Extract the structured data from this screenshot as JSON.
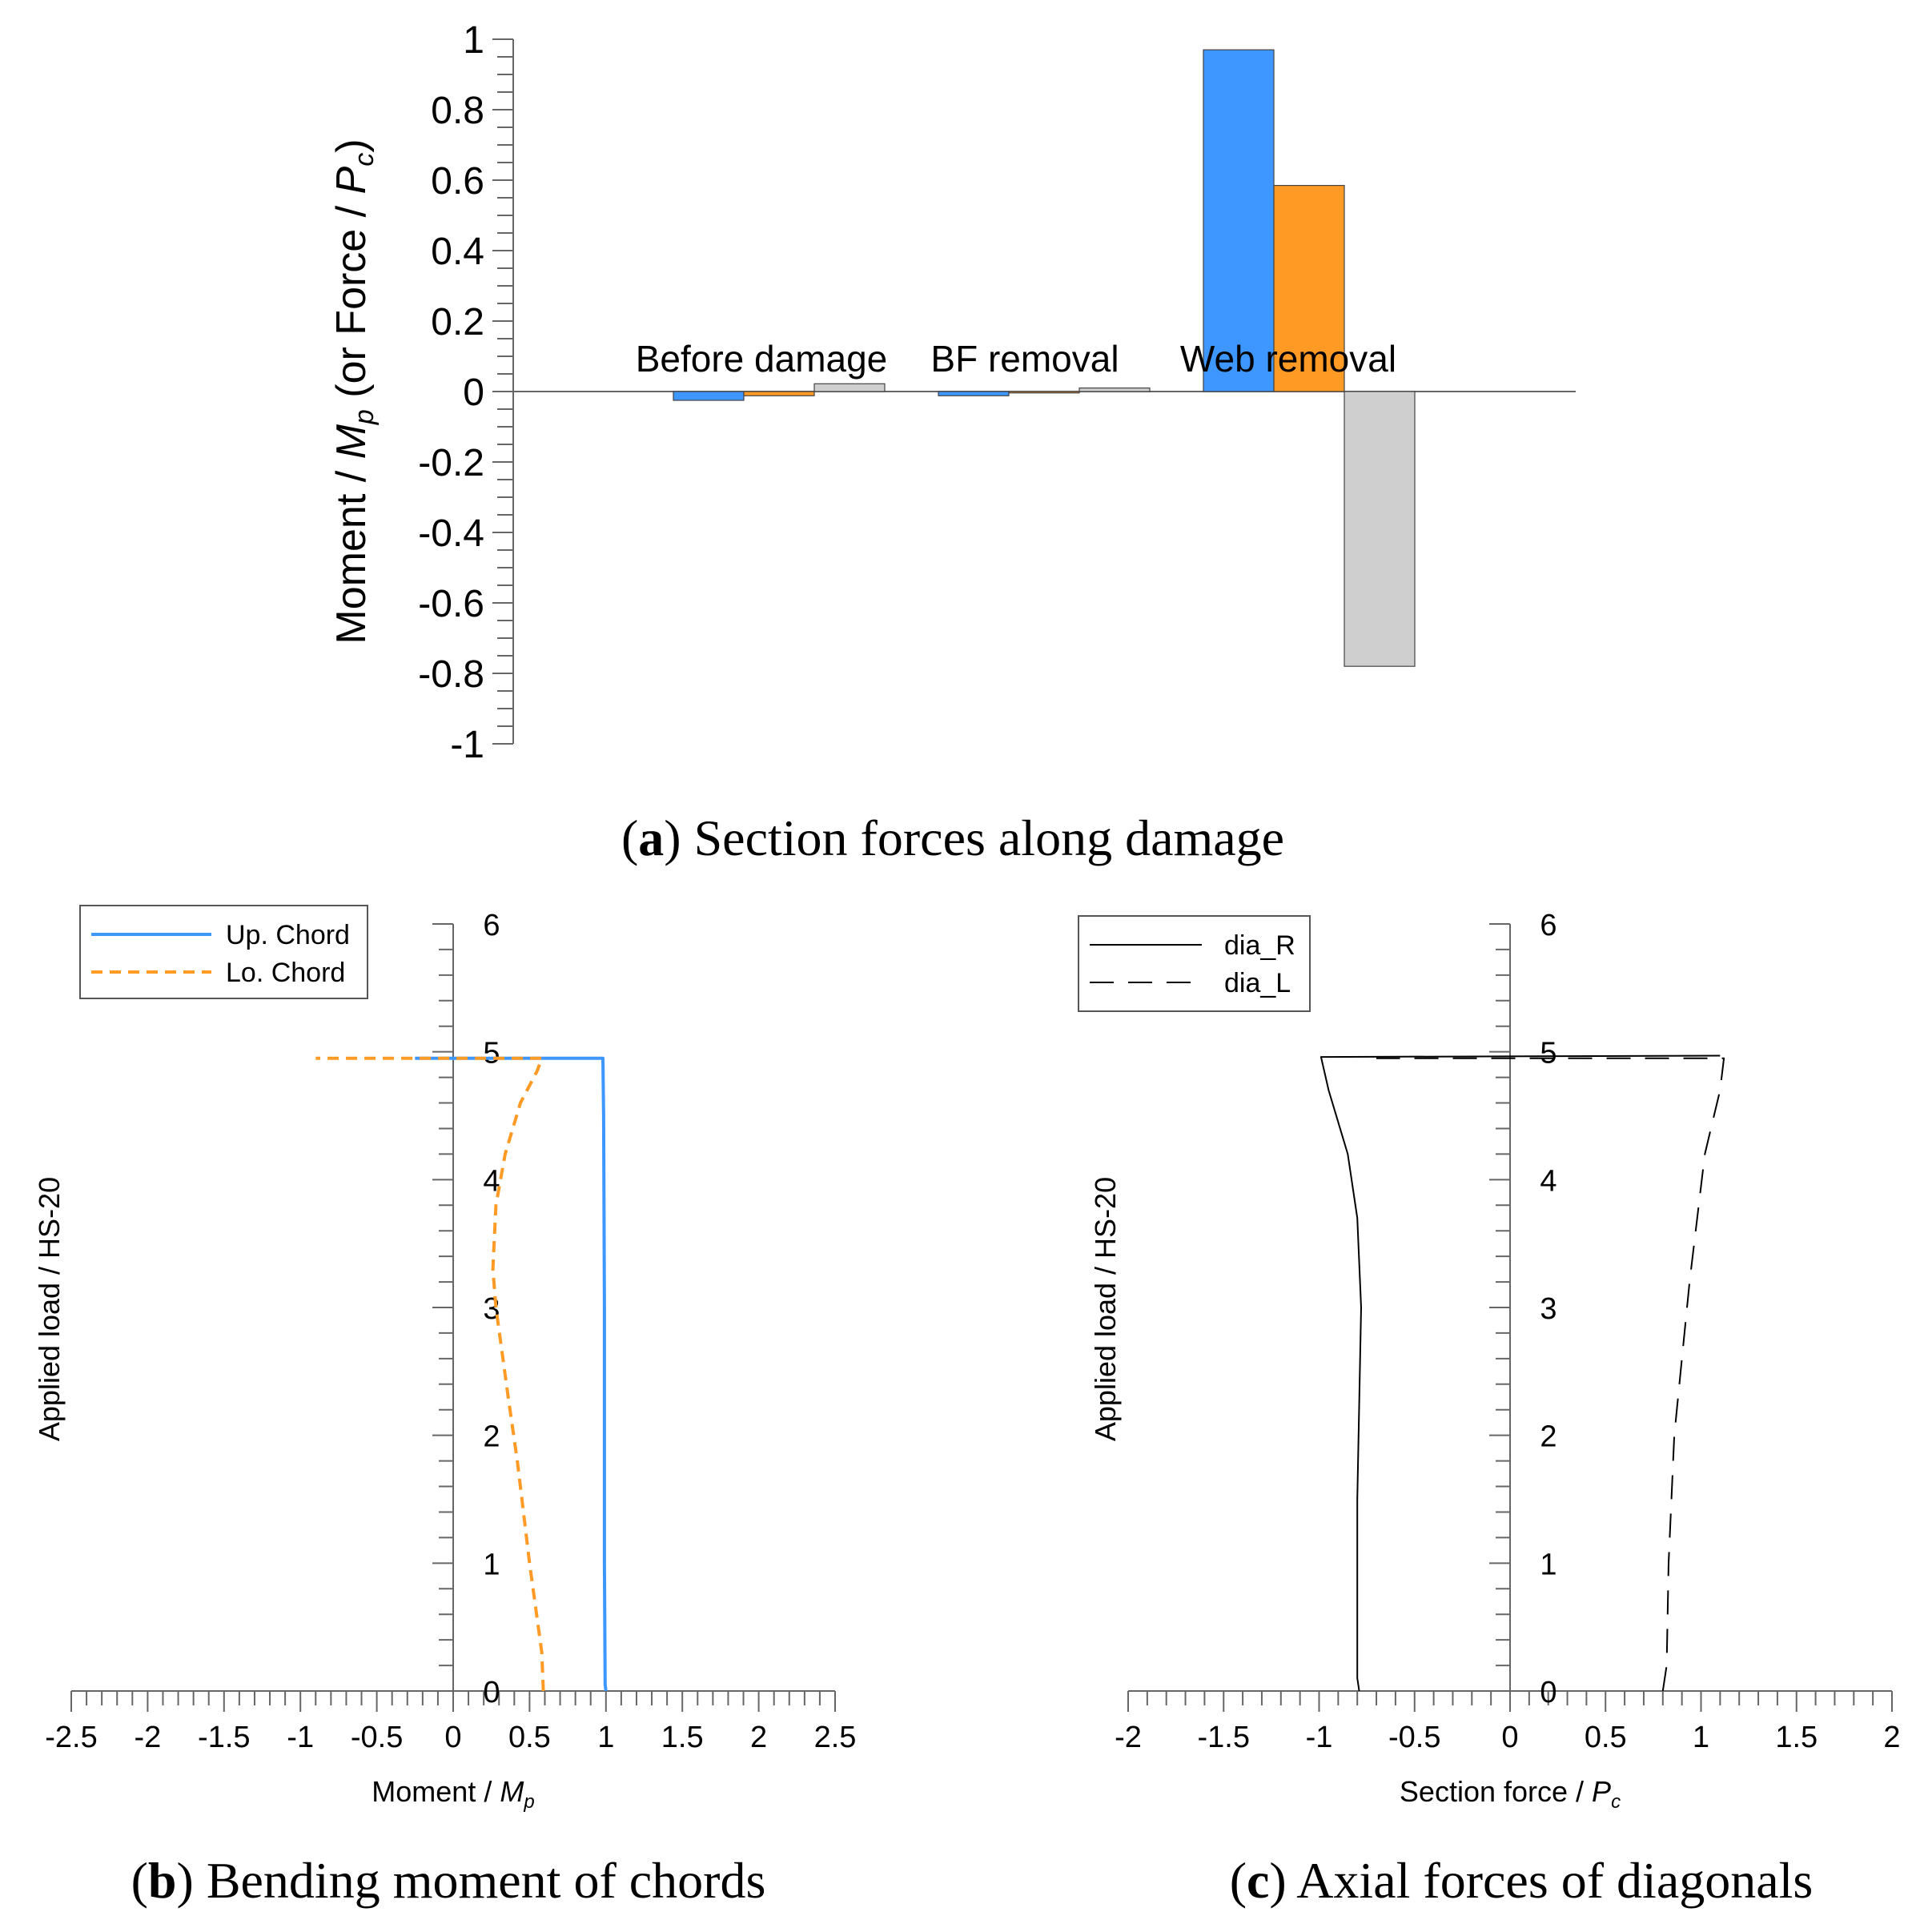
{
  "colors": {
    "blue": "#3d97ff",
    "orange": "#ff9a24",
    "gray": "#cfcfcf",
    "axis": "#666666",
    "black": "#000000"
  },
  "chart_data": [
    {
      "type": "bar",
      "caption": {
        "letter": "a",
        "text": ") Section forces along damage",
        "open": "("
      },
      "ylabel": {
        "pre": "Moment / ",
        "mp_main": "M",
        "mp_sub": "p",
        "mid": " (or Force / ",
        "pc_main": "P",
        "pc_sub": "c",
        "post": ")"
      },
      "ylim": [
        -1,
        1
      ],
      "yticks": [
        1,
        0.8,
        0.6,
        0.4,
        0.2,
        0,
        -0.2,
        -0.4,
        -0.6,
        -0.8,
        -1
      ],
      "ytick_labels": [
        "1",
        "0.8",
        "0.6",
        "0.4",
        "0.2",
        "0",
        "-0.2",
        "-0.4",
        "-0.6",
        "-0.8",
        "-1"
      ],
      "categories": [
        "Before damage",
        "BF removal",
        "Web removal"
      ],
      "series": [
        {
          "color": "blue",
          "values": [
            -0.025,
            -0.012,
            0.97
          ]
        },
        {
          "color": "orange",
          "values": [
            -0.012,
            -0.004,
            0.585
          ]
        },
        {
          "color": "gray",
          "values": [
            0.022,
            0.01,
            -0.78
          ]
        }
      ],
      "legend": "none"
    },
    {
      "type": "line",
      "caption": {
        "letter": "b",
        "text": ") Bending moment of chords",
        "open": "("
      },
      "xlabel": {
        "pre": "Moment / ",
        "main": "M",
        "sub": "p"
      },
      "ylabel": "Applied load / HS-20",
      "xlim": [
        -2.5,
        2.5
      ],
      "ylim": [
        0,
        6
      ],
      "xticks": [
        -2.5,
        -2,
        -1.5,
        -1,
        -0.5,
        0,
        0.5,
        1,
        1.5,
        2,
        2.5
      ],
      "xtick_labels": [
        "-2.5",
        "-2",
        "-1.5",
        "-1",
        "-0.5",
        "0",
        "0.5",
        "1",
        "1.5",
        "2",
        "2.5"
      ],
      "yticks": [
        0,
        1,
        2,
        3,
        4,
        5,
        6
      ],
      "ytick_labels": [
        "0",
        "1",
        "2",
        "3",
        "4",
        "5",
        "6"
      ],
      "legend_position": "top-left",
      "series": [
        {
          "name": "Up. Chord",
          "color": "blue",
          "dash": "solid",
          "x": [
            1.0,
            0.995,
            0.99,
            0.99,
            0.985,
            0.98,
            -0.25
          ],
          "y": [
            0,
            0.05,
            1.0,
            3.0,
            4.5,
            4.95,
            4.95
          ]
        },
        {
          "name": "Lo. Chord",
          "color": "orange",
          "dash": "dashed",
          "x": [
            0.59,
            0.58,
            0.5,
            0.42,
            0.36,
            0.28,
            0.26,
            0.28,
            0.34,
            0.44,
            0.55,
            0.58,
            -0.9
          ],
          "y": [
            0,
            0.3,
            1.0,
            1.8,
            2.3,
            3.0,
            3.3,
            3.8,
            4.2,
            4.6,
            4.85,
            4.95,
            4.95
          ]
        }
      ]
    },
    {
      "type": "line",
      "caption": {
        "letter": "c",
        "text": ") Axial forces of diagonals",
        "open": "("
      },
      "xlabel": {
        "pre": "Section force / ",
        "main": "P",
        "sub": "c"
      },
      "ylabel": "Applied load / HS-20",
      "xlim": [
        -2,
        2
      ],
      "ylim": [
        0,
        6
      ],
      "xticks": [
        -2,
        -1.5,
        -1,
        -0.5,
        0,
        0.5,
        1,
        1.5,
        2
      ],
      "xtick_labels": [
        "-2",
        "-1.5",
        "-1",
        "-0.5",
        "0",
        "0.5",
        "1",
        "1.5",
        "2"
      ],
      "yticks": [
        0,
        1,
        2,
        3,
        4,
        5,
        6
      ],
      "ytick_labels": [
        "0",
        "1",
        "2",
        "3",
        "4",
        "5",
        "6"
      ],
      "legend_position": "top-left",
      "series": [
        {
          "name": "dia_R",
          "color": "black",
          "dash": "solid",
          "x": [
            -0.79,
            -0.8,
            -0.8,
            -0.78,
            -0.8,
            -0.85,
            -0.95,
            -0.99,
            1.1
          ],
          "y": [
            0,
            0.1,
            1.5,
            3.0,
            3.7,
            4.2,
            4.7,
            4.96,
            4.97
          ]
        },
        {
          "name": "dia_L",
          "color": "black",
          "dash": "longdash",
          "x": [
            0.8,
            0.82,
            0.83,
            0.86,
            0.94,
            1.02,
            1.1,
            1.12,
            -0.7
          ],
          "y": [
            0,
            0.2,
            1.0,
            2.0,
            3.2,
            4.2,
            4.7,
            4.95,
            4.95
          ]
        }
      ]
    }
  ]
}
